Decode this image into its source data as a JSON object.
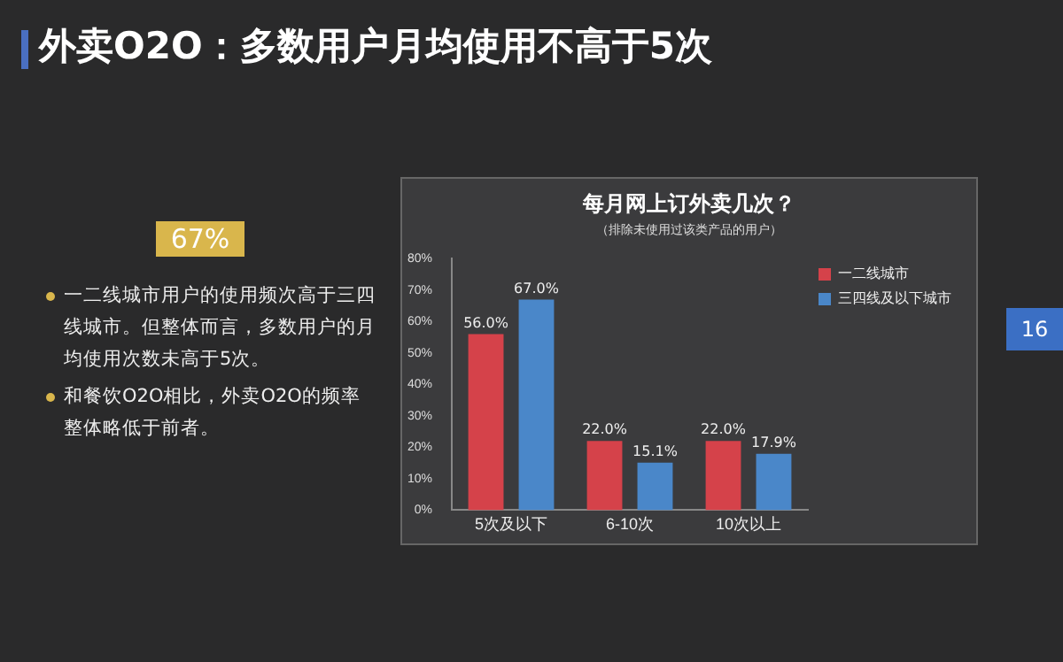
{
  "chart_data": {
    "type": "bar",
    "title": "外卖O2O：多数用户月均使用不高于5次",
    "subtitle": "每月网上订外卖几次？",
    "annotations": [
      "（排除未使用过该类产品的用户）",
      "67%",
      "一二线城市用户的使用频次高于三四线城市。但整体而言，多数用户的月均使用次数未高于5次。",
      "和餐饮O2O相比，外卖O2O的频率整体略低于前者。",
      "16"
    ],
    "categories": [
      "5次及以下",
      "6-10次",
      "10次以上"
    ],
    "series": [
      {
        "name": "一二线城市",
        "color": "#d5424a",
        "values": [
          56.0,
          22.0,
          22.0
        ],
        "value_labels": [
          "56.0%",
          "22.0%",
          "22.0%"
        ]
      },
      {
        "name": "三四线及以下城市",
        "color": "#4a87c9",
        "values": [
          67.0,
          15.1,
          17.9
        ],
        "value_labels": [
          "67.0%",
          "15.1%",
          "17.9%"
        ]
      }
    ],
    "ylim": [
      0,
      80
    ],
    "yticks": [
      {
        "value": 0,
        "label": "0%"
      },
      {
        "value": 10,
        "label": "10%"
      },
      {
        "value": 20,
        "label": "20%"
      },
      {
        "value": 30,
        "label": "30%"
      },
      {
        "value": 40,
        "label": "40%"
      },
      {
        "value": 50,
        "label": "50%"
      },
      {
        "value": 60,
        "label": "60%"
      },
      {
        "value": 70,
        "label": "70%"
      },
      {
        "value": 80,
        "label": "80%"
      }
    ],
    "grid": false,
    "legend": "right"
  }
}
